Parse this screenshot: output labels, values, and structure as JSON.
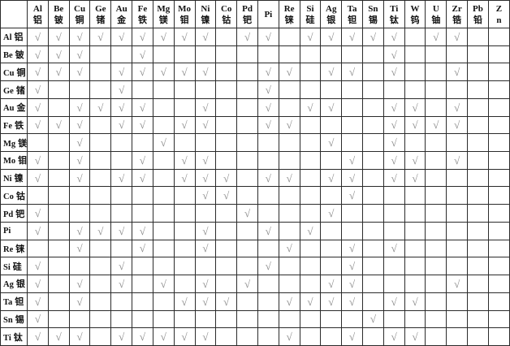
{
  "table": {
    "check_glyph": "√",
    "check_color": "#8a8a8a",
    "border_color": "#2b2b2b",
    "columns": [
      {
        "key": "al",
        "sym": "Al",
        "cn": "铝"
      },
      {
        "key": "be",
        "sym": "Be",
        "cn": "铍"
      },
      {
        "key": "cu",
        "sym": "Cu",
        "cn": "铜"
      },
      {
        "key": "ge",
        "sym": "Ge",
        "cn": "锗"
      },
      {
        "key": "au",
        "sym": "Au",
        "cn": "金"
      },
      {
        "key": "fe",
        "sym": "Fe",
        "cn": "铁"
      },
      {
        "key": "mg",
        "sym": "Mg",
        "cn": "镁"
      },
      {
        "key": "mo",
        "sym": "Mo",
        "cn": "钼"
      },
      {
        "key": "ni",
        "sym": "Ni",
        "cn": "镍"
      },
      {
        "key": "co",
        "sym": "Co",
        "cn": "钴"
      },
      {
        "key": "pd",
        "sym": "Pd",
        "cn": "钯"
      },
      {
        "key": "pi",
        "sym": "Pi",
        "cn": ""
      },
      {
        "key": "re",
        "sym": "Re",
        "cn": "铼"
      },
      {
        "key": "si",
        "sym": "Si",
        "cn": "硅"
      },
      {
        "key": "ag",
        "sym": "Ag",
        "cn": "银"
      },
      {
        "key": "ta",
        "sym": "Ta",
        "cn": "钽"
      },
      {
        "key": "sn",
        "sym": "Sn",
        "cn": "锡"
      },
      {
        "key": "ti",
        "sym": "Ti",
        "cn": "钛"
      },
      {
        "key": "w",
        "sym": "W",
        "cn": "钨"
      },
      {
        "key": "u",
        "sym": "U",
        "cn": "铀"
      },
      {
        "key": "zr",
        "sym": "Zr",
        "cn": "锆"
      },
      {
        "key": "pb",
        "sym": "Pb",
        "cn": "铅"
      },
      {
        "key": "zn",
        "sym": "Zn",
        "cn": "",
        "stacked": true
      }
    ],
    "rows": [
      {
        "key": "al",
        "sym": "Al",
        "cn": "铝",
        "checks": [
          1,
          1,
          1,
          1,
          1,
          1,
          1,
          1,
          1,
          0,
          1,
          1,
          0,
          1,
          1,
          1,
          1,
          1,
          0,
          1,
          1,
          0,
          0
        ]
      },
      {
        "key": "be",
        "sym": "Be",
        "cn": "铍",
        "checks": [
          1,
          1,
          1,
          0,
          0,
          1,
          0,
          0,
          0,
          0,
          0,
          0,
          0,
          0,
          0,
          0,
          0,
          1,
          0,
          0,
          0,
          0,
          0
        ]
      },
      {
        "key": "cu",
        "sym": "Cu",
        "cn": "铜",
        "checks": [
          1,
          1,
          1,
          0,
          1,
          1,
          1,
          1,
          1,
          0,
          0,
          1,
          1,
          0,
          1,
          1,
          0,
          1,
          0,
          0,
          1,
          0,
          0
        ]
      },
      {
        "key": "ge",
        "sym": "Ge",
        "cn": "锗",
        "checks": [
          1,
          0,
          0,
          0,
          1,
          0,
          0,
          0,
          0,
          0,
          0,
          1,
          0,
          0,
          0,
          0,
          0,
          0,
          0,
          0,
          0,
          0,
          0
        ]
      },
      {
        "key": "au",
        "sym": "Au",
        "cn": "金",
        "checks": [
          1,
          0,
          1,
          1,
          1,
          1,
          0,
          0,
          1,
          0,
          0,
          1,
          0,
          1,
          1,
          0,
          0,
          1,
          1,
          0,
          1,
          0,
          0
        ]
      },
      {
        "key": "fe",
        "sym": "Fe",
        "cn": "铁",
        "checks": [
          1,
          1,
          1,
          0,
          1,
          1,
          0,
          1,
          1,
          0,
          0,
          1,
          1,
          0,
          0,
          0,
          0,
          1,
          1,
          1,
          1,
          0,
          0
        ]
      },
      {
        "key": "mg",
        "sym": "Mg",
        "cn": "镁",
        "checks": [
          0,
          0,
          1,
          0,
          0,
          0,
          1,
          0,
          0,
          0,
          0,
          0,
          0,
          0,
          1,
          0,
          0,
          1,
          0,
          0,
          0,
          0,
          0
        ]
      },
      {
        "key": "mo",
        "sym": "Mo",
        "cn": "钼",
        "checks": [
          1,
          0,
          1,
          0,
          0,
          1,
          0,
          1,
          1,
          0,
          0,
          0,
          0,
          0,
          0,
          1,
          0,
          1,
          1,
          0,
          1,
          0,
          0
        ]
      },
      {
        "key": "ni",
        "sym": "Ni",
        "cn": "镍",
        "checks": [
          1,
          0,
          1,
          0,
          1,
          1,
          0,
          1,
          1,
          1,
          0,
          1,
          1,
          0,
          1,
          1,
          0,
          1,
          1,
          0,
          0,
          0,
          0
        ]
      },
      {
        "key": "co",
        "sym": "Co",
        "cn": "钴",
        "checks": [
          0,
          0,
          0,
          0,
          0,
          0,
          0,
          0,
          1,
          1,
          0,
          0,
          0,
          0,
          0,
          1,
          0,
          0,
          0,
          0,
          0,
          0,
          0
        ]
      },
      {
        "key": "pd",
        "sym": "Pd",
        "cn": "钯",
        "checks": [
          1,
          0,
          0,
          0,
          0,
          0,
          0,
          0,
          0,
          0,
          1,
          0,
          0,
          0,
          1,
          0,
          0,
          0,
          0,
          0,
          0,
          0,
          0
        ]
      },
      {
        "key": "pi",
        "sym": "Pi",
        "cn": "",
        "checks": [
          1,
          0,
          1,
          1,
          1,
          1,
          0,
          0,
          1,
          0,
          0,
          1,
          0,
          1,
          0,
          0,
          0,
          0,
          0,
          0,
          0,
          0,
          0
        ]
      },
      {
        "key": "re",
        "sym": "Re",
        "cn": "铼",
        "checks": [
          0,
          0,
          1,
          0,
          0,
          1,
          0,
          0,
          1,
          0,
          0,
          0,
          1,
          0,
          0,
          1,
          0,
          1,
          0,
          0,
          0,
          0,
          0
        ]
      },
      {
        "key": "si",
        "sym": "Si",
        "cn": "硅",
        "checks": [
          1,
          0,
          0,
          0,
          1,
          0,
          0,
          0,
          0,
          0,
          0,
          1,
          0,
          0,
          0,
          1,
          0,
          0,
          0,
          0,
          0,
          0,
          0
        ]
      },
      {
        "key": "ag",
        "sym": "Ag",
        "cn": "银",
        "checks": [
          1,
          0,
          1,
          0,
          1,
          0,
          1,
          0,
          1,
          0,
          1,
          0,
          0,
          0,
          1,
          1,
          0,
          0,
          0,
          0,
          1,
          0,
          0
        ]
      },
      {
        "key": "ta",
        "sym": "Ta",
        "cn": "钽",
        "checks": [
          1,
          0,
          1,
          0,
          0,
          0,
          0,
          1,
          1,
          1,
          0,
          0,
          1,
          1,
          1,
          1,
          0,
          1,
          1,
          0,
          0,
          0,
          0
        ]
      },
      {
        "key": "sn",
        "sym": "Sn",
        "cn": "锡",
        "checks": [
          1,
          0,
          0,
          0,
          0,
          0,
          0,
          0,
          0,
          0,
          0,
          0,
          0,
          0,
          0,
          0,
          1,
          0,
          0,
          0,
          0,
          0,
          0
        ]
      },
      {
        "key": "ti",
        "sym": "Ti",
        "cn": "钛",
        "checks": [
          1,
          1,
          1,
          0,
          1,
          1,
          1,
          1,
          1,
          0,
          0,
          0,
          1,
          0,
          0,
          1,
          0,
          1,
          1,
          0,
          0,
          0,
          0
        ]
      }
    ]
  }
}
